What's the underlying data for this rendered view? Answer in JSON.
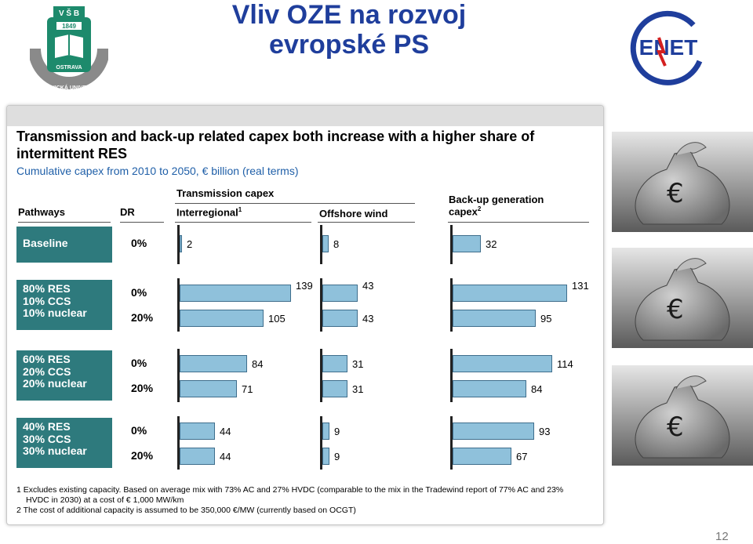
{
  "slide": {
    "title_line1": "Vliv OZE na rozvoj",
    "title_line2": "evropské PS",
    "page_number": "12",
    "logo_left": {
      "top_text": "V Š B",
      "year": "1849",
      "city": "OSTRAVA",
      "ring_text": "TECHNICKÁ UNIVERZITA"
    },
    "logo_right": {
      "text": "ENET"
    }
  },
  "chart_data": {
    "type": "bar",
    "title": "Transmission and back-up related capex both increase with a higher share of intermittent RES",
    "subtitle": "Cumulative capex from 2010 to 2050, € billion (real terms)",
    "headers": {
      "pathways": "Pathways",
      "dr": "DR",
      "transmission": "Transmission capex",
      "interregional": "Interregional",
      "interregional_sup": "1",
      "offshore": "Offshore wind",
      "backup_line1": "Back-up generation",
      "backup_line2": "capex",
      "backup_sup": "2"
    },
    "groups": [
      {
        "pathway": [
          "Baseline"
        ],
        "rows": [
          {
            "dr": "0%",
            "interregional": 2,
            "offshore": 8,
            "backup": 32
          }
        ]
      },
      {
        "pathway": [
          "80% RES",
          "10% CCS",
          "10% nuclear"
        ],
        "rows": [
          {
            "dr": "0%",
            "interregional": 139,
            "offshore": 43,
            "backup": 131
          },
          {
            "dr": "20%",
            "interregional": 105,
            "offshore": 43,
            "backup": 95
          }
        ]
      },
      {
        "pathway": [
          "60% RES",
          "20% CCS",
          "20% nuclear"
        ],
        "rows": [
          {
            "dr": "0%",
            "interregional": 84,
            "offshore": 31,
            "backup": 114
          },
          {
            "dr": "20%",
            "interregional": 71,
            "offshore": 31,
            "backup": 84
          }
        ]
      },
      {
        "pathway": [
          "40% RES",
          "30% CCS",
          "30% nuclear"
        ],
        "rows": [
          {
            "dr": "0%",
            "interregional": 44,
            "offshore": 9,
            "backup": 93
          },
          {
            "dr": "20%",
            "interregional": 44,
            "offshore": 9,
            "backup": 67
          }
        ]
      }
    ],
    "footnotes": [
      "1 Excludes existing capacity. Based on average mix with 73% AC and 27% HVDC (comparable to the mix in the Tradewind report of 77% AC and 23%",
      "HVDC in 2030) at a cost of € 1,000 MW/km",
      "2 The cost of additional capacity is assumed to be 350,000 €/MW (currently based on OCGT)"
    ]
  },
  "photos": [
    {
      "name": "euro-money-bag-1",
      "symbol": "€"
    },
    {
      "name": "euro-money-bag-2",
      "symbol": "€"
    },
    {
      "name": "euro-money-bag-3",
      "symbol": "€"
    }
  ]
}
